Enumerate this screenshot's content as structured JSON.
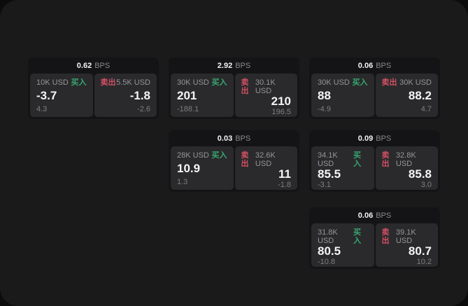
{
  "labels": {
    "bps": "BPS",
    "buy": "买入",
    "sell": "卖出"
  },
  "colors": {
    "buy": "#36a770",
    "sell": "#d25064",
    "panel_bg": "#1a1a1b",
    "card_bg": "#141416",
    "cell_bg": "#2a2a2c",
    "outer_bg": "#0c0c0c"
  },
  "cards": [
    {
      "spread": "0.62",
      "buy": {
        "size": "10K USD",
        "price": "-3.7",
        "delta": "4.3"
      },
      "sell": {
        "size": "5.5K USD",
        "price": "-1.8",
        "delta": "-2.6"
      }
    },
    {
      "spread": "2.92",
      "buy": {
        "size": "30K USD",
        "price": "201",
        "delta": "-188.1"
      },
      "sell": {
        "size": "30.1K USD",
        "price": "210",
        "delta": "196.5"
      }
    },
    {
      "spread": "0.06",
      "buy": {
        "size": "30K USD",
        "price": "88",
        "delta": "-4.9"
      },
      "sell": {
        "size": "30K USD",
        "price": "88.2",
        "delta": "4.7"
      }
    },
    {
      "spread": "0.03",
      "buy": {
        "size": "28K USD",
        "price": "10.9",
        "delta": "1.3"
      },
      "sell": {
        "size": "32.6K USD",
        "price": "11",
        "delta": "-1.8"
      }
    },
    {
      "spread": "0.09",
      "buy": {
        "size": "34.1K USD",
        "price": "85.5",
        "delta": "-3.1"
      },
      "sell": {
        "size": "32.8K USD",
        "price": "85.8",
        "delta": "3.0"
      }
    },
    {
      "spread": "0.06",
      "buy": {
        "size": "31.8K USD",
        "price": "80.5",
        "delta": "-10.8"
      },
      "sell": {
        "size": "39.1K USD",
        "price": "80.7",
        "delta": "10.2"
      }
    }
  ]
}
